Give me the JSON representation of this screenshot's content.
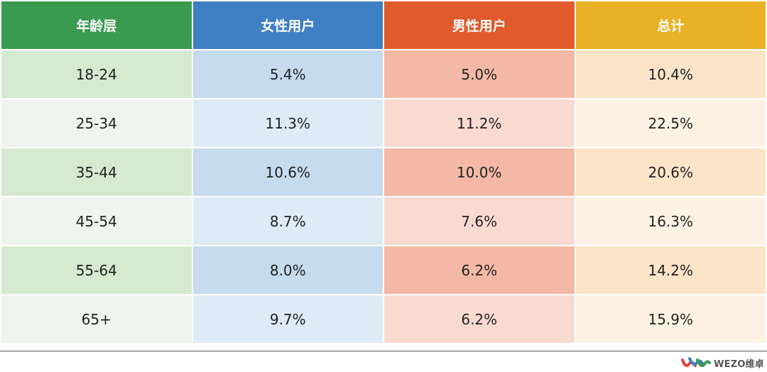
{
  "chart_data": {
    "type": "table",
    "columns": [
      "年龄层",
      "女性用户",
      "男性用户",
      "总计"
    ],
    "rows": [
      [
        "18-24",
        "5.4%",
        "5.0%",
        "10.4%"
      ],
      [
        "25-34",
        "11.3%",
        "11.2%",
        "22.5%"
      ],
      [
        "35-44",
        "10.6%",
        "10.0%",
        "20.6%"
      ],
      [
        "45-54",
        "8.7%",
        "7.6%",
        "16.3%"
      ],
      [
        "55-64",
        "8.0%",
        "6.2%",
        "14.2%"
      ],
      [
        "65+",
        "9.7%",
        "6.2%",
        "15.9%"
      ]
    ]
  },
  "colors": {
    "header": [
      "#3a9b50",
      "#3f7fc4",
      "#e05a2c",
      "#e9b226"
    ],
    "row_odd": [
      "#d6e9d1",
      "#c6dbed",
      "#f3b9a6",
      "#fbe4c8"
    ],
    "row_even": [
      "#eef5ec",
      "#deebf6",
      "#f9dad0",
      "#fdf2e3"
    ]
  },
  "logo": {
    "text": "WEZO维卓",
    "icon": "wezo-logo-icon"
  }
}
